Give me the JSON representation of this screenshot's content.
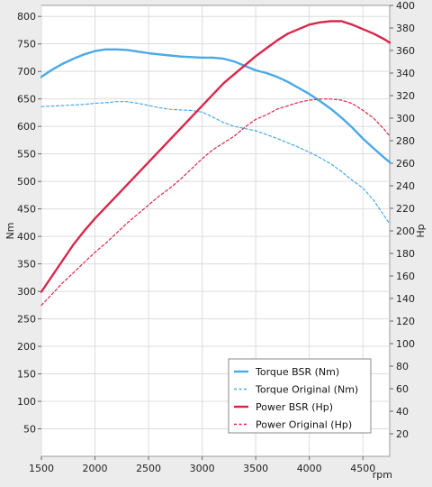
{
  "chart_data": {
    "type": "line",
    "title": "",
    "xlabel": "rpm",
    "ylabel_left": "Nm",
    "ylabel_right": "Hp",
    "xlim": [
      1500,
      4750
    ],
    "ylim_left": [
      0,
      820
    ],
    "ylim_right": [
      0,
      400
    ],
    "x_ticks": [
      "1500",
      "2000",
      "2500",
      "3000",
      "3500",
      "4000",
      "4500"
    ],
    "y_ticks_left": [
      "50",
      "100",
      "150",
      "200",
      "250",
      "300",
      "350",
      "400",
      "450",
      "500",
      "550",
      "600",
      "650",
      "700",
      "750",
      "800"
    ],
    "y_ticks_right": [
      "20",
      "40",
      "60",
      "80",
      "100",
      "120",
      "140",
      "160",
      "180",
      "200",
      "220",
      "240",
      "260",
      "280",
      "300",
      "320",
      "340",
      "360",
      "380",
      "400"
    ],
    "grid": true,
    "legend_position": "bottom-right",
    "colors": {
      "torque": "#4aa8e6",
      "power": "#d8274a",
      "plot_background": "#ffffff",
      "frame_background": "#ececec",
      "grid": "#dcdcdc"
    },
    "series": [
      {
        "name": "Torque BSR (Nm)",
        "axis": "left",
        "style": "solid",
        "x": [
          1500,
          1600,
          1700,
          1800,
          1900,
          2000,
          2100,
          2200,
          2300,
          2400,
          2500,
          2600,
          2700,
          2800,
          2900,
          3000,
          3100,
          3200,
          3300,
          3400,
          3500,
          3600,
          3700,
          3800,
          3900,
          4000,
          4100,
          4200,
          4300,
          4400,
          4500,
          4600,
          4700,
          4750
        ],
        "y": [
          690,
          703,
          714,
          723,
          731,
          737,
          740,
          740,
          739,
          736,
          733,
          731,
          729,
          727,
          726,
          725,
          725,
          723,
          718,
          710,
          702,
          697,
          690,
          681,
          670,
          659,
          646,
          632,
          616,
          598,
          578,
          560,
          543,
          535
        ]
      },
      {
        "name": "Torque Original (Nm)",
        "axis": "left",
        "style": "dashed",
        "x": [
          1500,
          1600,
          1700,
          1800,
          1900,
          2000,
          2100,
          2200,
          2300,
          2400,
          2500,
          2600,
          2700,
          2800,
          2900,
          3000,
          3100,
          3200,
          3300,
          3400,
          3500,
          3600,
          3700,
          3800,
          3900,
          4000,
          4100,
          4200,
          4300,
          4400,
          4500,
          4600,
          4700,
          4750
        ],
        "y": [
          636,
          637,
          638,
          639,
          640,
          642,
          643,
          645,
          645,
          642,
          638,
          634,
          631,
          630,
          629,
          626,
          617,
          607,
          600,
          596,
          592,
          585,
          578,
          570,
          562,
          553,
          543,
          532,
          518,
          502,
          488,
          466,
          437,
          423
        ]
      },
      {
        "name": "Power BSR (Hp)",
        "axis": "right",
        "style": "solid",
        "x": [
          1500,
          1600,
          1700,
          1800,
          1900,
          2000,
          2100,
          2200,
          2300,
          2400,
          2500,
          2600,
          2700,
          2800,
          2900,
          3000,
          3100,
          3200,
          3300,
          3400,
          3500,
          3600,
          3700,
          3800,
          3900,
          4000,
          4100,
          4200,
          4300,
          4400,
          4500,
          4600,
          4700,
          4750
        ],
        "y": [
          146,
          160,
          174,
          188,
          200,
          211,
          221,
          231,
          241,
          251,
          261,
          271,
          281,
          291,
          301,
          311,
          321,
          331,
          339,
          347,
          355,
          362,
          369,
          375,
          379,
          383,
          385,
          386,
          386,
          383,
          379,
          375,
          370,
          367
        ]
      },
      {
        "name": "Power Original (Hp)",
        "axis": "right",
        "style": "dashed",
        "x": [
          1500,
          1600,
          1700,
          1800,
          1900,
          2000,
          2100,
          2200,
          2300,
          2400,
          2500,
          2600,
          2700,
          2800,
          2900,
          3000,
          3100,
          3200,
          3300,
          3400,
          3500,
          3600,
          3700,
          3800,
          3900,
          4000,
          4100,
          4200,
          4300,
          4400,
          4500,
          4600,
          4700,
          4750
        ],
        "y": [
          134,
          144,
          154,
          163,
          172,
          181,
          189,
          198,
          207,
          215,
          223,
          231,
          238,
          246,
          255,
          264,
          272,
          278,
          284,
          292,
          299,
          303,
          308,
          311,
          314,
          316,
          317,
          317,
          316,
          313,
          307,
          300,
          290,
          284
        ]
      }
    ]
  }
}
